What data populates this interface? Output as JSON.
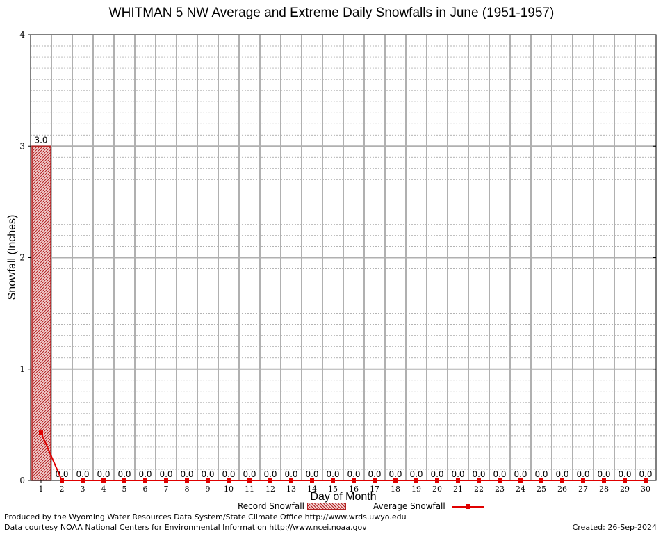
{
  "chart_data": {
    "type": "bar",
    "title": "WHITMAN 5 NW Average and Extreme Daily Snowfalls in June (1951-1957)",
    "xlabel": "Day of Month",
    "ylabel": "Snowfall (Inches)",
    "categories": [
      "1",
      "2",
      "3",
      "4",
      "5",
      "6",
      "7",
      "8",
      "9",
      "10",
      "11",
      "12",
      "13",
      "14",
      "15",
      "16",
      "17",
      "18",
      "19",
      "20",
      "21",
      "22",
      "23",
      "24",
      "25",
      "26",
      "27",
      "28",
      "29",
      "30"
    ],
    "ylim": [
      0,
      4
    ],
    "yticks": [
      "0",
      "1",
      "2",
      "3",
      "4"
    ],
    "grid": true,
    "legend_position": "bottom",
    "series": [
      {
        "name": "Record Snowfall",
        "type": "bar",
        "color": "#b22222",
        "values": [
          3.0,
          0,
          0,
          0,
          0,
          0,
          0,
          0,
          0,
          0,
          0,
          0,
          0,
          0,
          0,
          0,
          0,
          0,
          0,
          0,
          0,
          0,
          0,
          0,
          0,
          0,
          0,
          0,
          0,
          0
        ],
        "labels": [
          "3.0",
          "0.0",
          "0.0",
          "0.0",
          "0.0",
          "0.0",
          "0.0",
          "0.0",
          "0.0",
          "0.0",
          "0.0",
          "0.0",
          "0.0",
          "0.0",
          "0.0",
          "0.0",
          "0.0",
          "0.0",
          "0.0",
          "0.0",
          "0.0",
          "0.0",
          "0.0",
          "0.0",
          "0.0",
          "0.0",
          "0.0",
          "0.0",
          "0.0",
          "0.0"
        ]
      },
      {
        "name": "Average Snowfall",
        "type": "line",
        "color": "#e00000",
        "values": [
          0.43,
          0,
          0,
          0,
          0,
          0,
          0,
          0,
          0,
          0,
          0,
          0,
          0,
          0,
          0,
          0,
          0,
          0,
          0,
          0,
          0,
          0,
          0,
          0,
          0,
          0,
          0,
          0,
          0,
          0
        ]
      }
    ]
  },
  "footer": {
    "producer": "Produced by the Wyoming Water Resources Data System/State Climate Office http://www.wrds.uwyo.edu",
    "courtesy": "Data courtesy NOAA National Centers for Environmental Information http://www.ncei.noaa.gov",
    "created": "Created:  26-Sep-2024"
  }
}
